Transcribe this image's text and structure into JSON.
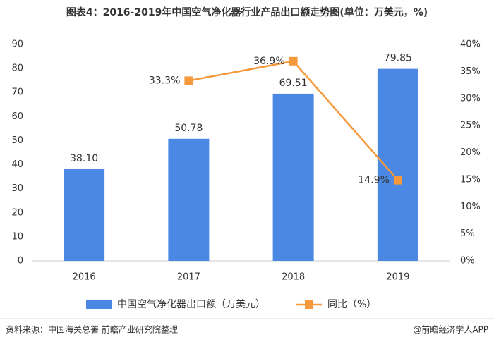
{
  "chart_data": {
    "type": "bar-line",
    "title": "图表4：2016-2019年中国空气净化器行业产品出口额走势图(单位：万美元，%)",
    "categories": [
      "2016",
      "2017",
      "2018",
      "2019"
    ],
    "series": [
      {
        "name": "中国空气净化器出口额（万美元）",
        "type": "bar",
        "color": "#4a88e3",
        "values": [
          38.1,
          50.78,
          69.51,
          79.85
        ],
        "value_labels": [
          "38.10",
          "50.78",
          "69.51",
          "79.85"
        ]
      },
      {
        "name": "同比（%）",
        "type": "line",
        "axis": "y2",
        "color": "#f5993c",
        "values": [
          null,
          33.3,
          36.9,
          14.9
        ],
        "value_labels": [
          null,
          "33.3%",
          "36.9%",
          "14.9%"
        ]
      }
    ],
    "ylim": [
      0,
      90
    ],
    "yticks": [
      0,
      10,
      20,
      30,
      40,
      50,
      60,
      70,
      80,
      90
    ],
    "y2lim": [
      0,
      40
    ],
    "y2ticks": [
      {
        "value": 0,
        "label": "0%"
      },
      {
        "value": 5,
        "label": "5%"
      },
      {
        "value": 10,
        "label": "10%"
      },
      {
        "value": 15,
        "label": "15%"
      },
      {
        "value": 20,
        "label": "20%"
      },
      {
        "value": 25,
        "label": "25%"
      },
      {
        "value": 30,
        "label": "30%"
      },
      {
        "value": 35,
        "label": "35%"
      },
      {
        "value": 40,
        "label": "40%"
      }
    ],
    "source": "资料来源：中国海关总署 前瞻产业研究院整理",
    "credit": "@前瞻经济学人APP"
  }
}
